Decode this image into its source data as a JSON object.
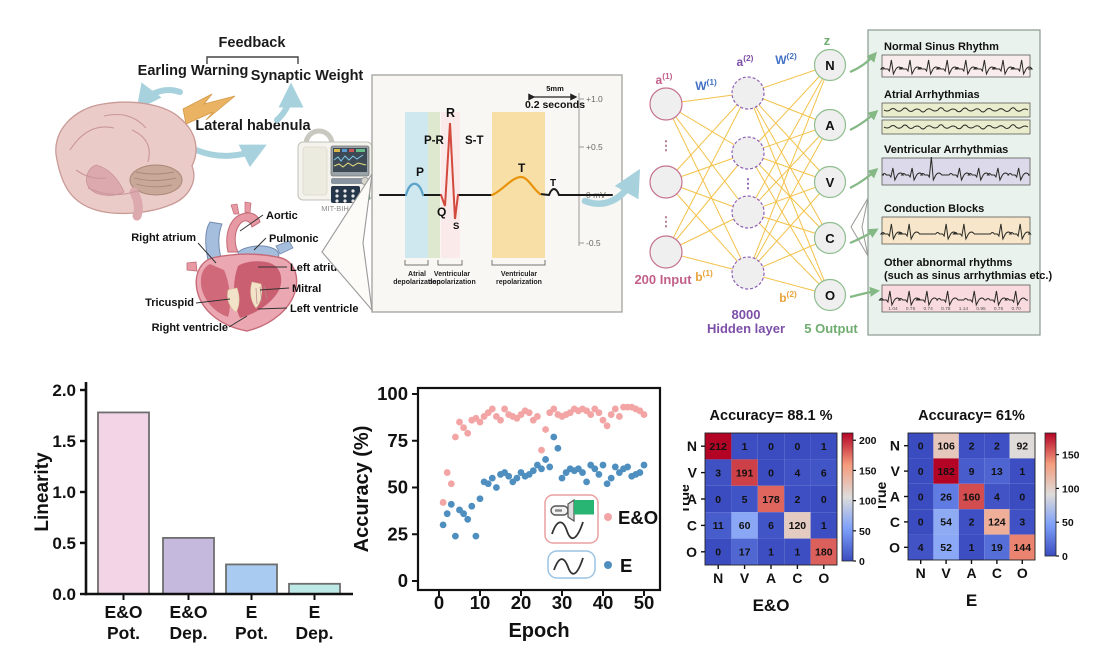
{
  "top": {
    "feedback": {
      "title": "Feedback",
      "left": "Earling Warning",
      "right": "Synaptic Weight",
      "center": "Lateral habenula"
    },
    "device": {
      "label": "MIT-BIH"
    },
    "heart": {
      "labels": [
        "Aortic",
        "Pulmonic",
        "Right atrium",
        "Left atrium",
        "Mitral",
        "Tricuspid",
        "Left ventricle",
        "Right ventricle"
      ]
    },
    "ecg": {
      "scale_mm": "5mm",
      "scale_time": "0.2 seconds",
      "yticks": [
        "+1.0",
        "+0.5",
        "0 mV",
        "-0.5"
      ],
      "waves": {
        "p": "P",
        "q": "Q",
        "r": "R",
        "s": "S",
        "t": "T",
        "t2": "T"
      },
      "segments": {
        "pr": "P-R",
        "st": "S-T"
      },
      "phases": [
        "Atrial depolarization",
        "Ventricular depolarization",
        "Ventricular repolarization"
      ]
    },
    "network": {
      "a1": "a(1)",
      "W1": "W(1)",
      "b1": "b(1)",
      "a2": "a(2)",
      "W2": "W(2)",
      "b2": "b(2)",
      "z": "z",
      "input_label": "200 Input",
      "hidden_label_1": "8000",
      "hidden_label_2": "Hidden layer",
      "output_label": "5 Output",
      "outputs": [
        "N",
        "A",
        "V",
        "C",
        "O"
      ]
    },
    "classes": [
      {
        "title": "Normal Sinus Rhythm",
        "color": "#f9ecec"
      },
      {
        "title": "Atrial Arrhythmias",
        "color": "#e9edcd"
      },
      {
        "title": "Ventricular Arrhythmias",
        "color": "#dcd9ea"
      },
      {
        "title": "Conduction Blocks",
        "color": "#f7e6c9"
      },
      {
        "title": "Other abnormal rhythms",
        "subtitle": "(such as sinus arrhythmias etc.)",
        "color": "#f9dade",
        "intervals": [
          "1.04",
          "0.76",
          "0.74",
          "0.78",
          "1.14",
          "0.95",
          "0.76",
          "0.70"
        ]
      }
    ]
  },
  "chart_data": [
    {
      "type": "bar",
      "categories": [
        "E&O Pot.",
        "E&O Dep.",
        "E Pot.",
        "E Dep."
      ],
      "categories_line1": [
        "E&O",
        "E&O",
        "E",
        "E"
      ],
      "categories_line2": [
        "Pot.",
        "Dep.",
        "Pot.",
        "Dep."
      ],
      "values": [
        1.78,
        0.55,
        0.29,
        0.1
      ],
      "title": "",
      "xlabel": "",
      "ylabel": "Linearity",
      "ylim": [
        0,
        2.0
      ],
      "yticks": [
        0.0,
        0.5,
        1.0,
        1.5,
        2.0
      ],
      "bar_colors": [
        "#f3d4e6",
        "#c6b9de",
        "#a9cbf2",
        "#bce9e6"
      ],
      "bar_edge": "#6e6e6e"
    },
    {
      "type": "scatter",
      "xlabel": "Epoch",
      "ylabel": "Accuracy (%)",
      "xlim": [
        -5,
        53
      ],
      "ylim": [
        0,
        100
      ],
      "xticks": [
        0,
        10,
        20,
        30,
        40,
        50
      ],
      "yticks": [
        0,
        25,
        50,
        75,
        100
      ],
      "legend_position": "lower right",
      "x": [
        1,
        2,
        3,
        4,
        5,
        6,
        7,
        8,
        9,
        10,
        11,
        12,
        13,
        14,
        15,
        16,
        17,
        18,
        19,
        20,
        21,
        22,
        23,
        24,
        25,
        26,
        27,
        28,
        29,
        30,
        31,
        32,
        33,
        34,
        35,
        36,
        37,
        38,
        39,
        40,
        41,
        42,
        43,
        44,
        45,
        46,
        47,
        48,
        49,
        50
      ],
      "series": [
        {
          "name": "E&O",
          "color": "#f2a5a4",
          "y": [
            42,
            58,
            52,
            77,
            85,
            82,
            79,
            86,
            87,
            85,
            88,
            90,
            92,
            88,
            86,
            92,
            89,
            88,
            87,
            89,
            91,
            90,
            86,
            88,
            70,
            81,
            90,
            92,
            89,
            88,
            89,
            90,
            92,
            91,
            92,
            91,
            89,
            92,
            90,
            86,
            83,
            89,
            92,
            88,
            93,
            93,
            93,
            92,
            91,
            89
          ]
        },
        {
          "name": "E",
          "color": "#4e8fc0",
          "y": [
            30,
            36,
            41,
            24,
            38,
            36,
            33,
            40,
            24,
            44,
            53,
            52,
            55,
            50,
            57,
            58,
            56,
            53,
            55,
            58,
            56,
            57,
            59,
            62,
            60,
            65,
            61,
            77,
            71,
            55,
            58,
            60,
            59,
            60,
            58,
            53,
            62,
            60,
            57,
            62,
            52,
            55,
            61,
            58,
            60,
            61,
            56,
            57,
            58,
            62
          ]
        }
      ]
    },
    {
      "type": "heatmap",
      "title": "Accuracy= 88.1 %",
      "xlabel": "E&O",
      "ylabel": "True",
      "rows": [
        "N",
        "V",
        "A",
        "C",
        "O"
      ],
      "cols": [
        "N",
        "V",
        "A",
        "C",
        "O"
      ],
      "values": [
        [
          212,
          1,
          0,
          0,
          1
        ],
        [
          3,
          191,
          0,
          4,
          6
        ],
        [
          0,
          5,
          178,
          2,
          0
        ],
        [
          11,
          60,
          6,
          120,
          1
        ],
        [
          0,
          17,
          1,
          1,
          180
        ]
      ],
      "vmin": 0,
      "vmax": 212,
      "colorbar_ticks": [
        0,
        50,
        100,
        150,
        200
      ],
      "colormap": "coolwarm"
    },
    {
      "type": "heatmap",
      "title": "Accuracy= 61%",
      "xlabel": "E",
      "ylabel": "True",
      "rows": [
        "N",
        "V",
        "A",
        "C",
        "O"
      ],
      "cols": [
        "N",
        "V",
        "A",
        "C",
        "O"
      ],
      "values": [
        [
          0,
          106,
          2,
          2,
          92
        ],
        [
          0,
          182,
          9,
          13,
          1
        ],
        [
          0,
          26,
          160,
          4,
          0
        ],
        [
          0,
          54,
          2,
          124,
          3
        ],
        [
          4,
          52,
          1,
          19,
          144
        ]
      ],
      "vmin": 0,
      "vmax": 182,
      "colorbar_ticks": [
        0,
        50,
        100,
        150
      ],
      "colormap": "coolwarm"
    }
  ]
}
